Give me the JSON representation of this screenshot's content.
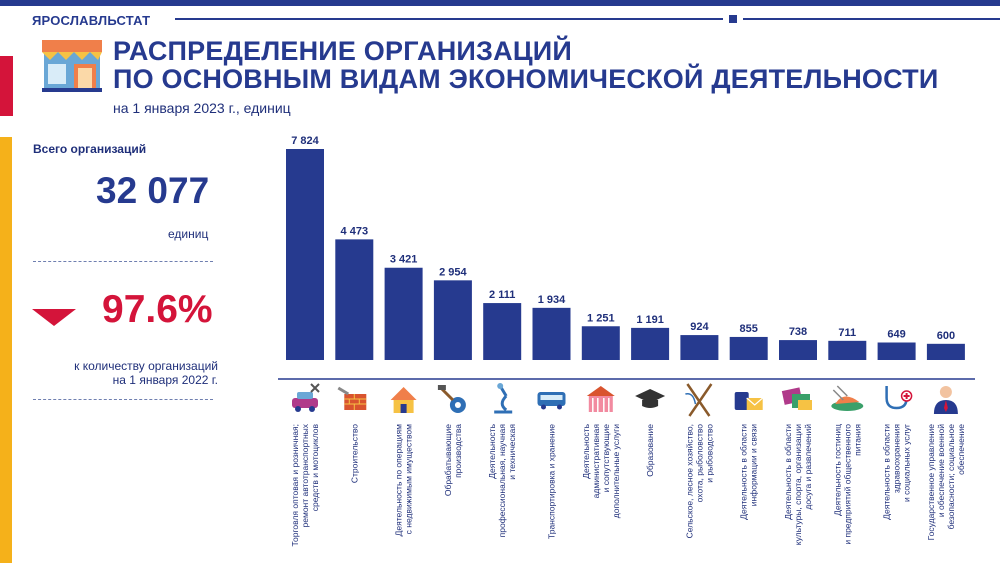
{
  "header": {
    "brand": "ЯРОСЛАВЛЬСТАТ"
  },
  "title": {
    "line1": "РАСПРЕДЕЛЕНИЕ ОРГАНИЗАЦИЙ",
    "line2": "ПО ОСНОВНЫМ ВИДАМ ЭКОНОМИЧЕСКОЙ ДЕЯТЕЛЬНОСТИ"
  },
  "subtitle": "на 1 января 2023 г., единиц",
  "summary": {
    "total_label": "Всего организаций",
    "total_value": "32 077",
    "unit": "единиц",
    "percent": "97.6%",
    "note_line1": "к количеству организаций",
    "note_line2": "на 1 января 2022 г."
  },
  "colors": {
    "brand": "#263a8f",
    "accent_red": "#d4143a",
    "accent_yellow": "#f5b11a"
  },
  "chart_data": {
    "type": "bar",
    "title": "РАСПРЕДЕЛЕНИЕ ОРГАНИЗАЦИЙ ПО ОСНОВНЫМ ВИДАМ ЭКОНОМИЧЕСКОЙ ДЕЯТЕЛЬНОСТИ",
    "subtitle": "на 1 января 2023 г., единиц",
    "ylim": [
      0,
      7824
    ],
    "categories": [
      [
        "Торговля оптовая и розничная;",
        "ремонт автотранспортных",
        "средств и мотоциклов"
      ],
      [
        "Строительство"
      ],
      [
        "Деятельность по операциям",
        "с недвижимым имуществом"
      ],
      [
        "Обрабатывающие",
        "производства"
      ],
      [
        "Деятельность",
        "профессиональная, научная",
        "и техническая"
      ],
      [
        "Транспортировка и хранение"
      ],
      [
        "Деятельность",
        "административная",
        "и сопутствующие",
        "дополнительные услуги"
      ],
      [
        "Образование"
      ],
      [
        "Сельское, лесное хозяйство,",
        "охота, рыболовство",
        "и рыбоводство"
      ],
      [
        "Деятельность в области",
        "информации и связи"
      ],
      [
        "Деятельность в области",
        "культуры, спорта, организации",
        "досуга и развлечений"
      ],
      [
        "Деятельность гостиниц",
        "и предприятий общественного",
        "питания"
      ],
      [
        "Деятельность в области",
        "здравоохранения",
        "и социальных услуг"
      ],
      [
        "Государственное управление",
        "и обеспечение военной",
        "безопасности; социальное",
        "обеспечение"
      ]
    ],
    "values": [
      7824,
      4473,
      3421,
      2954,
      2111,
      1934,
      1251,
      1191,
      924,
      855,
      738,
      711,
      649,
      600
    ],
    "value_labels": [
      "7 824",
      "4 473",
      "3 421",
      "2 954",
      "2 111",
      "1 934",
      "1 251",
      "1 191",
      "924",
      "855",
      "738",
      "711",
      "649",
      "600"
    ],
    "icons": [
      "car-repair-icon",
      "brick-wall-icon",
      "house-icon",
      "hammer-gear-icon",
      "microscope-icon",
      "bus-icon",
      "building-icon",
      "graduation-cap-icon",
      "fishing-rods-icon",
      "phone-mail-icon",
      "tickets-icon",
      "food-icon",
      "stethoscope-icon",
      "official-person-icon"
    ],
    "bar_color": "#263a8f"
  }
}
